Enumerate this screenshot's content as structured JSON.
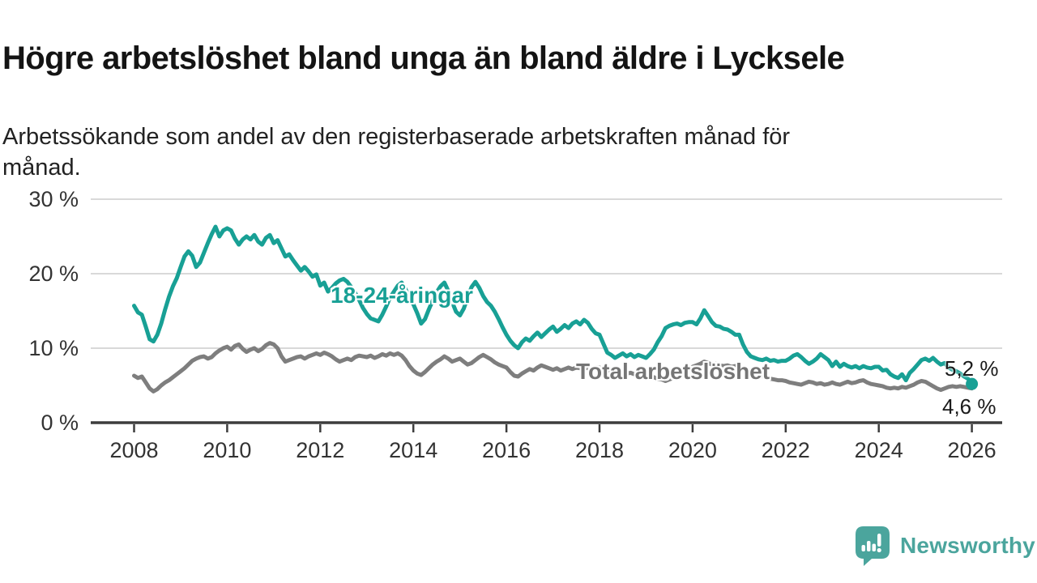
{
  "header": {
    "title": "Högre arbetslöshet bland unga än bland äldre i Lycksele",
    "subtitle_line1": "Arbetssökande som andel av den registerbaserade arbetskraften månad för",
    "subtitle_line2": "månad."
  },
  "chart_data": {
    "type": "line",
    "title": "Högre arbetslöshet bland unga än bland äldre i Lycksele",
    "subtitle": "Arbetssökande som andel av den registerbaserade arbetskraften månad för månad.",
    "x_unit": "monthly, January 2008 to January 2026",
    "x_axis": {
      "start_year": 2008,
      "ticks": [
        2008,
        2010,
        2012,
        2014,
        2016,
        2018,
        2020,
        2022,
        2024,
        2026
      ]
    },
    "y_axis": {
      "values": [
        30,
        20,
        10,
        0
      ],
      "labels": [
        "30 %",
        "20 %",
        "10 %",
        "0 %"
      ],
      "ylim": [
        0,
        30
      ],
      "grid": true
    },
    "style": {
      "grid_color": "#d9d9d9",
      "axis_color": "#3d3d3d",
      "tick_text_color": "#333333"
    },
    "series": [
      {
        "name": "18-24-åringar",
        "color": "#18a095",
        "label_color": "#18a095",
        "end_label": "5,2 %",
        "end_value": 5.2,
        "end_dot": true,
        "values": [
          15.7,
          14.8,
          14.5,
          12.9,
          11.2,
          10.9,
          11.8,
          13.3,
          15.2,
          16.9,
          18.3,
          19.4,
          20.9,
          22.3,
          23.0,
          22.4,
          20.9,
          21.5,
          22.8,
          24.1,
          25.3,
          26.3,
          25.0,
          25.8,
          26.1,
          25.8,
          24.7,
          23.9,
          24.6,
          25.0,
          24.6,
          25.2,
          24.3,
          23.9,
          24.8,
          25.2,
          24.1,
          24.5,
          23.4,
          22.3,
          22.6,
          21.8,
          21.1,
          20.4,
          20.9,
          20.3,
          19.6,
          19.9,
          18.4,
          18.8,
          17.6,
          18.1,
          18.7,
          19.1,
          19.3,
          18.9,
          18.2,
          17.4,
          16.5,
          15.4,
          14.6,
          14.0,
          13.8,
          13.6,
          14.5,
          15.6,
          16.8,
          17.6,
          18.4,
          18.8,
          17.9,
          16.8,
          15.9,
          14.7,
          13.3,
          13.9,
          15.2,
          16.4,
          17.5,
          18.3,
          18.8,
          17.7,
          16.2,
          14.9,
          14.4,
          15.3,
          16.8,
          18.2,
          18.9,
          18.1,
          17.0,
          16.2,
          15.7,
          14.9,
          13.9,
          12.8,
          11.8,
          11.0,
          10.4,
          10.0,
          10.8,
          11.3,
          11.0,
          11.6,
          12.1,
          11.5,
          12.0,
          12.5,
          12.9,
          12.2,
          12.6,
          13.1,
          12.7,
          13.3,
          13.6,
          13.2,
          13.8,
          13.4,
          12.6,
          12.0,
          11.8,
          10.6,
          9.4,
          9.1,
          8.7,
          9.0,
          9.3,
          8.9,
          9.2,
          8.8,
          9.1,
          8.9,
          8.7,
          9.2,
          9.8,
          10.8,
          11.6,
          12.7,
          13.0,
          13.2,
          13.3,
          13.1,
          13.4,
          13.5,
          13.5,
          13.2,
          14.0,
          15.1,
          14.3,
          13.5,
          13.0,
          12.9,
          12.6,
          12.5,
          12.2,
          11.8,
          11.8,
          10.5,
          9.5,
          8.9,
          8.7,
          8.5,
          8.4,
          8.6,
          8.3,
          8.4,
          8.2,
          8.3,
          8.3,
          8.6,
          9.0,
          9.2,
          8.8,
          8.3,
          7.9,
          8.2,
          8.6,
          9.2,
          8.8,
          8.4,
          7.6,
          8.2,
          7.5,
          7.9,
          7.6,
          7.4,
          7.6,
          7.3,
          7.6,
          7.4,
          7.3,
          7.5,
          7.5,
          7.0,
          7.1,
          6.5,
          6.2,
          6.0,
          6.5,
          5.7,
          6.7,
          7.2,
          7.8,
          8.4,
          8.6,
          8.3,
          8.7,
          8.2,
          7.8,
          8.0,
          7.4,
          7.1,
          6.9,
          6.6,
          6.2,
          5.9,
          5.2
        ]
      },
      {
        "name": "Total arbetslöshet",
        "color": "#7e7e7e",
        "label_color": "#757575",
        "end_label": "4,6 %",
        "end_value": 4.6,
        "end_dot": false,
        "values": [
          6.3,
          6.0,
          6.2,
          5.4,
          4.6,
          4.2,
          4.5,
          5.0,
          5.4,
          5.7,
          6.1,
          6.5,
          6.9,
          7.3,
          7.8,
          8.3,
          8.6,
          8.8,
          8.9,
          8.6,
          8.8,
          9.3,
          9.7,
          10.0,
          10.2,
          9.8,
          10.3,
          10.5,
          9.9,
          9.5,
          9.8,
          10.0,
          9.6,
          9.9,
          10.4,
          10.7,
          10.5,
          10.0,
          8.9,
          8.2,
          8.4,
          8.6,
          8.8,
          8.9,
          8.6,
          8.9,
          9.1,
          9.3,
          9.1,
          9.4,
          9.2,
          8.9,
          8.5,
          8.2,
          8.4,
          8.6,
          8.4,
          8.8,
          9.0,
          8.9,
          8.8,
          9.0,
          8.7,
          8.9,
          9.2,
          9.0,
          9.3,
          9.1,
          9.3,
          9.0,
          8.4,
          7.6,
          7.0,
          6.6,
          6.4,
          6.8,
          7.3,
          7.8,
          8.2,
          8.5,
          8.9,
          8.6,
          8.2,
          8.4,
          8.6,
          8.2,
          7.8,
          8.0,
          8.4,
          8.8,
          9.1,
          8.8,
          8.5,
          8.1,
          7.8,
          7.6,
          7.4,
          6.8,
          6.3,
          6.2,
          6.6,
          6.9,
          7.2,
          7.0,
          7.4,
          7.7,
          7.5,
          7.3,
          7.1,
          7.3,
          7.0,
          7.2,
          7.4,
          7.2,
          7.4,
          7.3,
          7.5,
          7.3,
          7.2,
          7.4,
          7.4,
          7.2,
          7.0,
          6.8,
          6.9,
          6.7,
          6.8,
          6.6,
          6.7,
          6.5,
          6.4,
          6.3,
          6.2,
          6.0,
          6.1,
          5.9,
          5.8,
          5.6,
          5.8,
          6.0,
          6.2,
          6.5,
          6.9,
          7.2,
          7.5,
          7.7,
          7.9,
          8.2,
          8.0,
          7.8,
          7.9,
          7.7,
          7.6,
          7.7,
          7.5,
          7.6,
          7.4,
          7.3,
          7.1,
          6.9,
          6.7,
          6.4,
          6.2,
          6.0,
          5.9,
          5.8,
          5.7,
          5.7,
          5.6,
          5.4,
          5.3,
          5.2,
          5.1,
          5.3,
          5.5,
          5.4,
          5.2,
          5.3,
          5.1,
          5.2,
          5.4,
          5.2,
          5.1,
          5.3,
          5.5,
          5.3,
          5.4,
          5.6,
          5.7,
          5.4,
          5.2,
          5.1,
          5.0,
          4.9,
          4.7,
          4.6,
          4.7,
          4.6,
          4.8,
          4.7,
          4.9,
          5.1,
          5.4,
          5.6,
          5.5,
          5.2,
          4.9,
          4.6,
          4.4,
          4.6,
          4.8,
          4.9,
          4.8,
          4.9,
          4.8,
          4.7,
          4.6
        ]
      }
    ]
  },
  "branding": {
    "wordmark": "Newsworthy",
    "color": "#4ba59d"
  }
}
